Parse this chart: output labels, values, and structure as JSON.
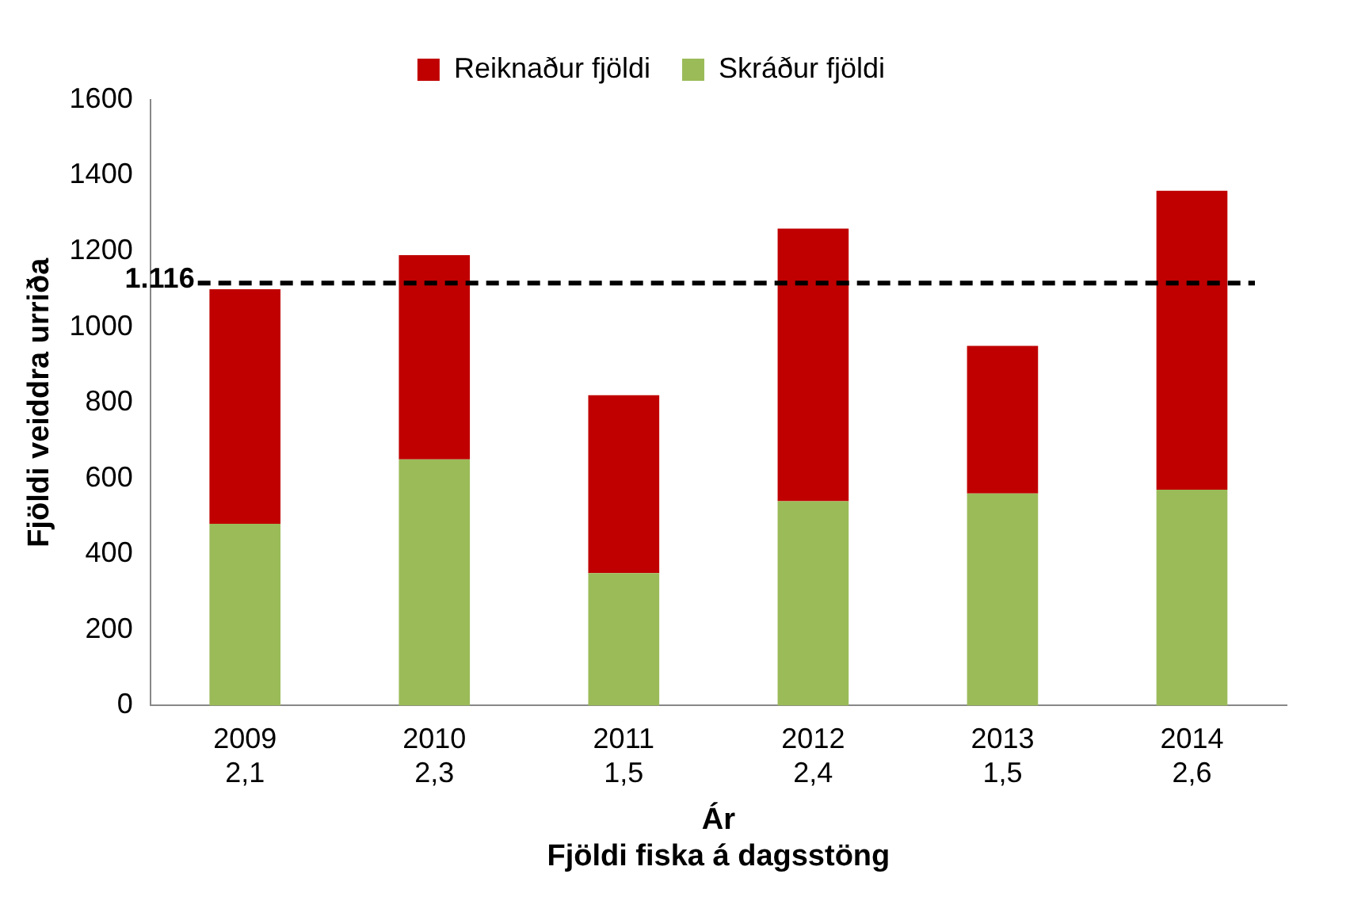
{
  "chart_data": {
    "type": "bar",
    "stacked": true,
    "categories": [
      "2009\n2,1",
      "2010\n2,3",
      "2011\n1,5",
      "2012\n2,4",
      "2013\n1,5",
      "2014\n2,6"
    ],
    "xlabel": "Ár\nFjöldi fiska á dagsstöng",
    "ylabel": "Fjöldi veiddra urriða",
    "series": [
      {
        "name": "Skráður fjöldi",
        "color": "#9bbb59",
        "values": [
          480,
          650,
          350,
          540,
          560,
          570
        ]
      },
      {
        "name": "Reiknaður fjöldi",
        "color": "#c00000",
        "values": [
          620,
          540,
          470,
          720,
          390,
          790
        ]
      }
    ],
    "ylim": [
      0,
      1600
    ],
    "yticks": [
      0,
      200,
      400,
      600,
      800,
      1000,
      1200,
      1400,
      1600
    ],
    "grid": false,
    "legend": "top",
    "ref_lines": [
      {
        "axis": "y",
        "value": 1116,
        "label": "1.116",
        "color": "#000000",
        "line_style": "dashed"
      }
    ]
  }
}
